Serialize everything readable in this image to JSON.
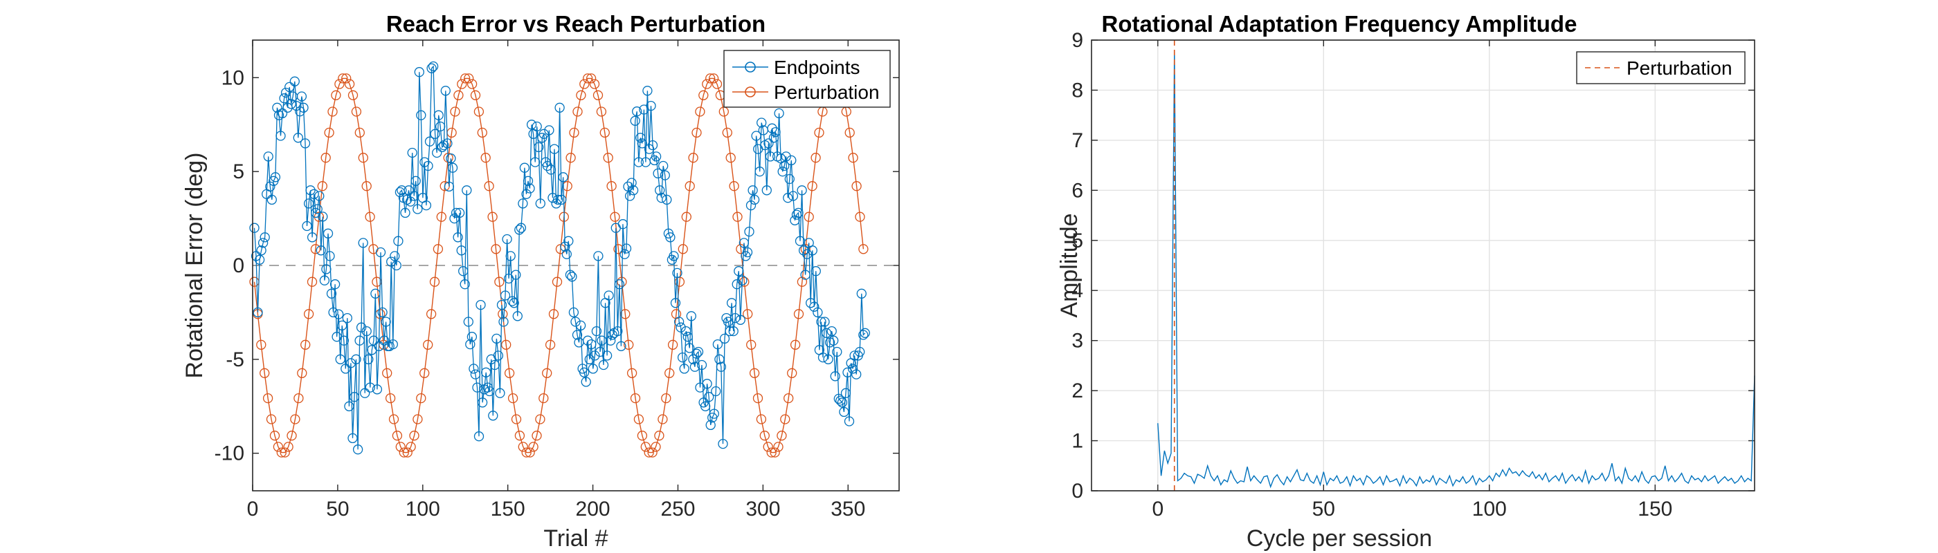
{
  "chart_data": [
    {
      "type": "line",
      "title": "Reach Error vs Reach Perturbation",
      "xlabel": "Trial #",
      "ylabel": "Rotational Error (deg)",
      "xlim": [
        0,
        380
      ],
      "ylim": [
        -12,
        12
      ],
      "xticks": [
        "0",
        "50",
        "100",
        "150",
        "200",
        "250",
        "300",
        "350"
      ],
      "xtick_values": [
        0,
        50,
        100,
        150,
        200,
        250,
        300,
        350
      ],
      "yticks": [
        "-10",
        "-5",
        "0",
        "5",
        "10"
      ],
      "ytick_values": [
        -10,
        -5,
        0,
        5,
        10
      ],
      "grid": false,
      "legend_position": "top-right",
      "reference_line": {
        "y": 0,
        "style": "dashed",
        "color": "#9a9a9a"
      },
      "series": [
        {
          "name": "Endpoints",
          "color": "#0072BD",
          "marker": "circle",
          "x_range": [
            1,
            360
          ],
          "values": [
            2,
            0.5,
            -2.5,
            0.3,
            0.8,
            1.2,
            1.5,
            3.8,
            5.8,
            4.2,
            3.5,
            4.5,
            4.7,
            8.4,
            8.0,
            6.9,
            8.1,
            8.9,
            9.2,
            8.4,
            9.5,
            8.6,
            9.0,
            9.8,
            8.5,
            6.8,
            8.2,
            9.0,
            8.4,
            6.5,
            2.1,
            3.3,
            4.0,
            1.5,
            3.8,
            2.8,
            3.0,
            3.7,
            0.8,
            2.6,
            -0.8,
            -0.2,
            1.7,
            0.5,
            -1.5,
            -2.5,
            -1.0,
            -3.8,
            -2.6,
            -5.0,
            -3.2,
            -4.0,
            -5.5,
            -2.8,
            -7.5,
            -5.2,
            -9.2,
            -7.0,
            -5.0,
            -9.8,
            -4.0,
            -3.3,
            1.2,
            -6.8,
            -3.5,
            -5.0,
            -6.5,
            -4.5,
            -4.0,
            -1.5,
            -6.6,
            -4.3,
            0.7,
            -2.5,
            -4.0,
            -3.0,
            -4.3,
            -4.3,
            0.2,
            -4.2,
            0.5,
            0.0,
            1.3,
            3.9,
            4.0,
            3.6,
            2.8,
            3.5,
            4.0,
            3.4,
            6.0,
            3.7,
            4.5,
            3.0,
            10.3,
            8.0,
            3.6,
            5.5,
            3.2,
            5.3,
            6.6,
            10.5,
            10.6,
            7.0,
            6.0,
            8.0,
            7.4,
            6.3,
            6.4,
            9.3,
            6.5,
            4.2,
            5.7,
            5.2,
            2.5,
            2.8,
            1.5,
            2.8,
            0.8,
            -0.3,
            -1.0,
            4.0,
            -3.0,
            -4.2,
            -3.8,
            -5.5,
            -5.8,
            -6.5,
            -9.1,
            -2.1,
            -7.3,
            -6.6,
            -5.7,
            -6.5,
            -6.7,
            -5.0,
            -8.0,
            -5.3,
            -3.9,
            -4.8,
            -6.8,
            -2.1,
            -3.0,
            -1.6,
            1.4,
            -0.7,
            0.5,
            -1.9,
            -2.0,
            -0.5,
            -2.7,
            1.9,
            2.0,
            3.3,
            5.2,
            3.8,
            4.5,
            4.1,
            7.5,
            7.0,
            5.5,
            7.4,
            6.3,
            3.3,
            6.8,
            7.0,
            5.5,
            5.3,
            7.2,
            5.1,
            3.6,
            6.2,
            3.3,
            3.5,
            8.4,
            3.5,
            4.7,
            1.0,
            0.6,
            1.3,
            -0.5,
            -0.6,
            -2.5,
            -3.0,
            -3.7,
            -4.1,
            -3.2,
            -5.5,
            -5.7,
            -6.2,
            -4.0,
            -5.0,
            -4.2,
            -5.5,
            -4.8,
            -3.5,
            0.5,
            -4.6,
            -4.0,
            -5.3,
            -2.0,
            -4.8,
            -1.6,
            -4.0,
            -3.7,
            -3.6,
            2.0,
            -3.5,
            -1.0,
            -4.3,
            2.2,
            0.6,
            0.9,
            4.2,
            3.7,
            4.4,
            4.0,
            7.7,
            8.2,
            5.5,
            6.8,
            6.5,
            8.3,
            5.5,
            9.3,
            6.2,
            8.5,
            6.4,
            5.6,
            5.8,
            4.9,
            4.0,
            3.6,
            5.3,
            4.8,
            3.5,
            1.7,
            1.5,
            0.3,
            0.5,
            -2.0,
            -0.4,
            -3.0,
            -3.3,
            -4.9,
            -5.5,
            -3.5,
            -3.8,
            -4.4,
            -2.7,
            -5.0,
            -5.4,
            -4.7,
            -4.6,
            -6.5,
            -5.3,
            -7.3,
            -7.5,
            -6.3,
            -7.0,
            -8.5,
            -8.1,
            -7.9,
            -6.7,
            -4.2,
            -5.0,
            -5.4,
            -9.5,
            -3.9,
            -2.8,
            -3.0,
            -3.5,
            -2.0,
            -3.5,
            -2.8,
            -1.0,
            -0.3,
            -2.9,
            -0.8,
            1.2,
            0.5,
            0.7,
            1.8,
            3.2,
            4.0,
            3.5,
            6.9,
            6.2,
            5.0,
            7.6,
            7.2,
            6.4,
            4.0,
            6.5,
            5.8,
            7.3,
            6.8,
            7.1,
            5.8,
            8.1,
            5.7,
            5.0,
            5.3,
            5.8,
            3.6,
            4.6,
            5.6,
            3.7,
            2.4,
            2.7,
            2.8,
            1.3,
            4.0,
            0.8,
            -0.5,
            0.6,
            1.2,
            -2.0,
            0.8,
            -2.2,
            -0.3,
            -2.5,
            -4.5,
            -3.0,
            -4.9,
            -3.0,
            -3.6,
            -5.0,
            -4.1,
            -3.5,
            -4.0,
            -5.9,
            -4.6,
            -7.1,
            -7.2,
            -7.3,
            -7.8,
            -6.8,
            -5.7,
            -8.3,
            -5.2,
            -5.5,
            -4.8,
            -5.8,
            -4.8,
            -4.6,
            -1.5,
            -3.7,
            -3.6
          ]
        },
        {
          "name": "Perturbation",
          "color": "#D95319",
          "marker": "circle",
          "amplitude": 10,
          "period_trials": 72,
          "phase_start": 0,
          "x_range": [
            1,
            360
          ],
          "step": 2
        }
      ]
    },
    {
      "type": "line",
      "title": "Rotational Adaptation Frequency Amplitude",
      "xlabel": "Cycle per session",
      "ylabel": "Amplitude",
      "xlim": [
        -20,
        180
      ],
      "ylim": [
        0,
        9
      ],
      "xticks": [
        "0",
        "50",
        "100",
        "150"
      ],
      "xtick_values": [
        0,
        50,
        100,
        150
      ],
      "yticks": [
        "0",
        "1",
        "2",
        "3",
        "4",
        "5",
        "6",
        "7",
        "8",
        "9"
      ],
      "ytick_values": [
        0,
        1,
        2,
        3,
        4,
        5,
        6,
        7,
        8,
        9
      ],
      "grid": true,
      "legend_position": "top-right",
      "vertical_line": {
        "x": 5,
        "name": "Perturbation",
        "style": "dashed",
        "color": "#D95319"
      },
      "series": [
        {
          "name": "",
          "color": "#0072BD",
          "x_start": 0,
          "values": [
            1.35,
            0.3,
            0.8,
            0.55,
            0.75,
            8.8,
            0.2,
            0.25,
            0.35,
            0.3,
            0.28,
            0.15,
            0.33,
            0.3,
            0.25,
            0.5,
            0.3,
            0.2,
            0.3,
            0.12,
            0.22,
            0.18,
            0.4,
            0.25,
            0.15,
            0.2,
            0.18,
            0.48,
            0.2,
            0.3,
            0.22,
            0.15,
            0.28,
            0.3,
            0.08,
            0.25,
            0.32,
            0.2,
            0.12,
            0.28,
            0.18,
            0.3,
            0.42,
            0.22,
            0.2,
            0.35,
            0.2,
            0.15,
            0.3,
            0.12,
            0.38,
            0.12,
            0.25,
            0.2,
            0.3,
            0.15,
            0.18,
            0.28,
            0.1,
            0.3,
            0.2,
            0.25,
            0.12,
            0.3,
            0.25,
            0.15,
            0.2,
            0.28,
            0.12,
            0.3,
            0.18,
            0.2,
            0.24,
            0.1,
            0.3,
            0.15,
            0.25,
            0.2,
            0.1,
            0.28,
            0.15,
            0.22,
            0.18,
            0.3,
            0.12,
            0.25,
            0.2,
            0.15,
            0.3,
            0.1,
            0.22,
            0.18,
            0.28,
            0.15,
            0.2,
            0.3,
            0.12,
            0.25,
            0.18,
            0.22,
            0.3,
            0.2,
            0.35,
            0.28,
            0.42,
            0.3,
            0.45,
            0.35,
            0.38,
            0.3,
            0.4,
            0.32,
            0.28,
            0.38,
            0.25,
            0.32,
            0.22,
            0.35,
            0.18,
            0.25,
            0.3,
            0.2,
            0.35,
            0.15,
            0.25,
            0.32,
            0.2,
            0.28,
            0.18,
            0.4,
            0.15,
            0.3,
            0.22,
            0.25,
            0.35,
            0.2,
            0.3,
            0.55,
            0.2,
            0.28,
            0.15,
            0.45,
            0.25,
            0.2,
            0.3,
            0.18,
            0.38,
            0.22,
            0.15,
            0.28,
            0.3,
            0.2,
            0.25,
            0.5,
            0.2,
            0.3,
            0.18,
            0.25,
            0.35,
            0.2,
            0.15,
            0.3,
            0.22,
            0.25,
            0.18,
            0.3,
            0.2,
            0.25,
            0.3,
            0.15,
            0.22,
            0.28,
            0.2,
            0.25,
            0.15,
            0.2,
            0.3,
            0.18,
            0.25,
            0.2,
            2.3
          ]
        }
      ]
    }
  ]
}
